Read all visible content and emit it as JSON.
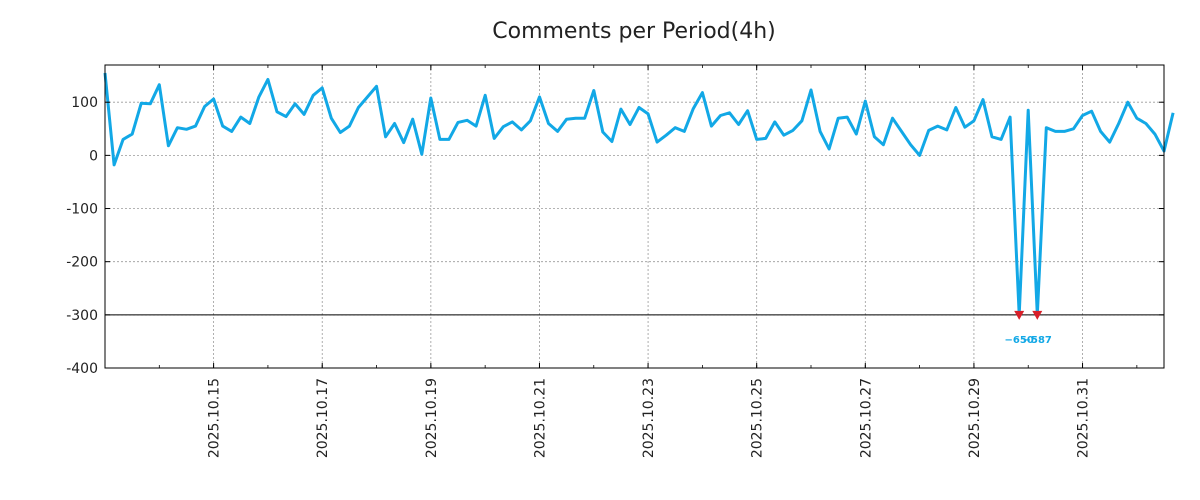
{
  "chart_data": {
    "type": "line",
    "title": "Comments per Period(4h)",
    "xlabel": "",
    "ylabel": "",
    "ylim": [
      -400,
      170
    ],
    "xlim": [
      "2025-10-13T00:00",
      "2025-11-01T12:00"
    ],
    "y_ticks": [
      100,
      0,
      -100,
      -200,
      -300,
      -400
    ],
    "x_tick_labels": [
      "2025.10.15",
      "2025.10.17",
      "2025.10.19",
      "2025.10.21",
      "2025.10.23",
      "2025.10.25",
      "2025.10.27",
      "2025.10.29",
      "2025.10.31"
    ],
    "x_tick_dates": [
      "2025-10-15",
      "2025-10-17",
      "2025-10-19",
      "2025-10-21",
      "2025-10-23",
      "2025-10-25",
      "2025-10-27",
      "2025-10-29",
      "2025-10-31"
    ],
    "grid": true,
    "reference_line": -300,
    "interval_hours": 4,
    "series": [
      {
        "color": "#12a8e6",
        "values": [
          155,
          -18,
          30,
          40,
          98,
          97,
          133,
          18,
          52,
          49,
          55,
          92,
          106,
          55,
          45,
          72,
          60,
          110,
          143,
          82,
          73,
          97,
          77,
          113,
          127,
          70,
          43,
          55,
          90,
          110,
          130,
          35,
          60,
          24,
          68,
          2,
          108,
          30,
          30,
          62,
          66,
          55,
          113,
          32,
          54,
          63,
          48,
          65,
          110,
          60,
          45,
          68,
          70,
          70,
          122,
          44,
          26,
          87,
          58,
          90,
          78,
          25,
          38,
          52,
          45,
          88,
          118,
          55,
          75,
          80,
          58,
          84,
          30,
          32,
          63,
          38,
          47,
          65,
          123,
          45,
          12,
          70,
          72,
          40,
          102,
          35,
          20,
          70,
          45,
          20,
          0,
          47,
          55,
          48,
          90,
          53,
          65,
          105,
          35,
          30,
          72,
          -650,
          85,
          -587,
          52,
          45,
          45,
          50,
          75,
          83,
          45,
          25,
          60,
          100,
          70,
          60,
          40,
          8,
          80
        ]
      }
    ],
    "clipped_points": [
      {
        "date": "2025-10-29T20:00",
        "value": -650,
        "label": "−650"
      },
      {
        "date": "2025-10-30T04:00",
        "value": -587,
        "label": "−587"
      }
    ]
  }
}
